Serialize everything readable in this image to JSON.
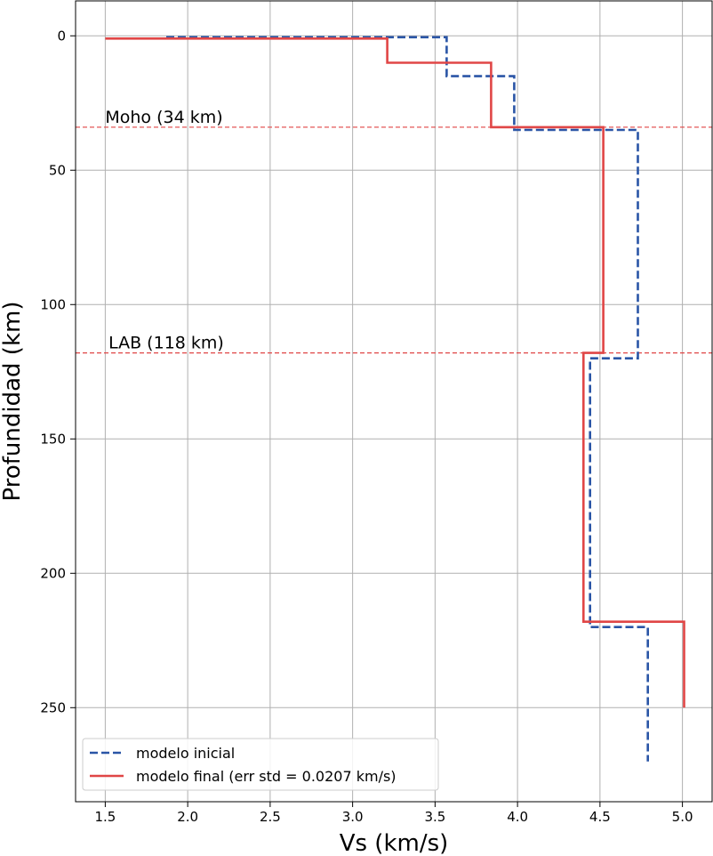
{
  "chart_data": {
    "type": "line",
    "title": "",
    "xlabel": "Vs (km/s)",
    "ylabel": "Profundidad (km)",
    "xlim": [
      1.32,
      5.18
    ],
    "ylim": [
      285,
      -13
    ],
    "y_inverted": true,
    "grid": true,
    "xticks": [
      1.5,
      2.0,
      2.5,
      3.0,
      3.5,
      4.0,
      4.5,
      5.0
    ],
    "xtick_labels": [
      "1.5",
      "2.0",
      "2.5",
      "3.0",
      "3.5",
      "4.0",
      "4.5",
      "5.0"
    ],
    "yticks": [
      0,
      50,
      100,
      150,
      200,
      250
    ],
    "ytick_labels": [
      "0",
      "50",
      "100",
      "150",
      "200",
      "250"
    ],
    "legend_position": "lower-left",
    "series": [
      {
        "name": "modelo inicial",
        "color": "#2a55a6",
        "style": "dashed",
        "x": [
          1.87,
          3.57,
          3.57,
          3.98,
          3.98,
          4.73,
          4.73,
          4.44,
          4.44,
          4.79,
          4.79
        ],
        "y": [
          0.5,
          0.5,
          15,
          15,
          35,
          35,
          120,
          120,
          220,
          220,
          270
        ]
      },
      {
        "name": "modelo final (err std = 0.0207 km/s)",
        "color": "#e04646",
        "style": "solid",
        "x": [
          1.5,
          3.21,
          3.21,
          3.84,
          3.84,
          4.52,
          4.52,
          4.4,
          4.4,
          5.01,
          5.01
        ],
        "y": [
          1,
          1,
          10,
          10,
          34,
          34,
          118,
          118,
          218,
          218,
          250
        ]
      }
    ],
    "reference_lines": [
      {
        "y": 34,
        "label": "Moho (34 km)",
        "label_x": 1.5,
        "color": "#e04646",
        "style": "dashed"
      },
      {
        "y": 118,
        "label": "LAB (118 km)",
        "label_x": 1.52,
        "color": "#e04646",
        "style": "dashed"
      }
    ]
  }
}
